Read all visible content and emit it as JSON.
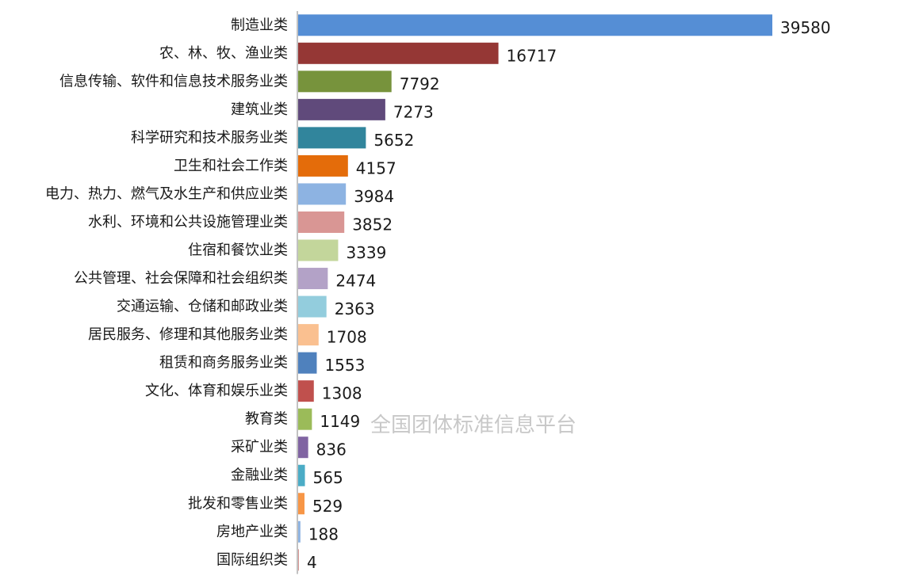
{
  "watermark": "全国团体标准信息平台",
  "chart_data": {
    "type": "bar",
    "orientation": "horizontal",
    "categories": [
      "制造业类",
      "农、林、牧、渔业类",
      "信息传输、软件和信息技术服务业类",
      "建筑业类",
      "科学研究和技术服务业类",
      "卫生和社会工作类",
      "电力、热力、燃气及水生产和供应业类",
      "水利、环境和公共设施管理业类",
      "住宿和餐饮业类",
      "公共管理、社会保障和社会组织类",
      "交通运输、仓储和邮政业类",
      "居民服务、修理和其他服务业类",
      "租赁和商务服务业类",
      "文化、体育和娱乐业类",
      "教育类",
      "采矿业类",
      "金融业类",
      "批发和零售业类",
      "房地产业类",
      "国际组织类"
    ],
    "values": [
      39580,
      16717,
      7792,
      7273,
      5652,
      4157,
      3984,
      3852,
      3339,
      2474,
      2363,
      1708,
      1553,
      1308,
      1149,
      836,
      565,
      529,
      188,
      4
    ],
    "colors": [
      "#558ed5",
      "#953735",
      "#77933c",
      "#604a7b",
      "#31859c",
      "#e46c0a",
      "#8db3e2",
      "#d99694",
      "#c3d69b",
      "#b3a2c7",
      "#93cddd",
      "#fac090",
      "#4f81bd",
      "#c0504d",
      "#9bbb59",
      "#8064a2",
      "#4bacc6",
      "#f79646",
      "#8db3e2",
      "#d99694"
    ],
    "xlim": [
      0,
      39580
    ],
    "grid": false,
    "data_labels": true
  }
}
